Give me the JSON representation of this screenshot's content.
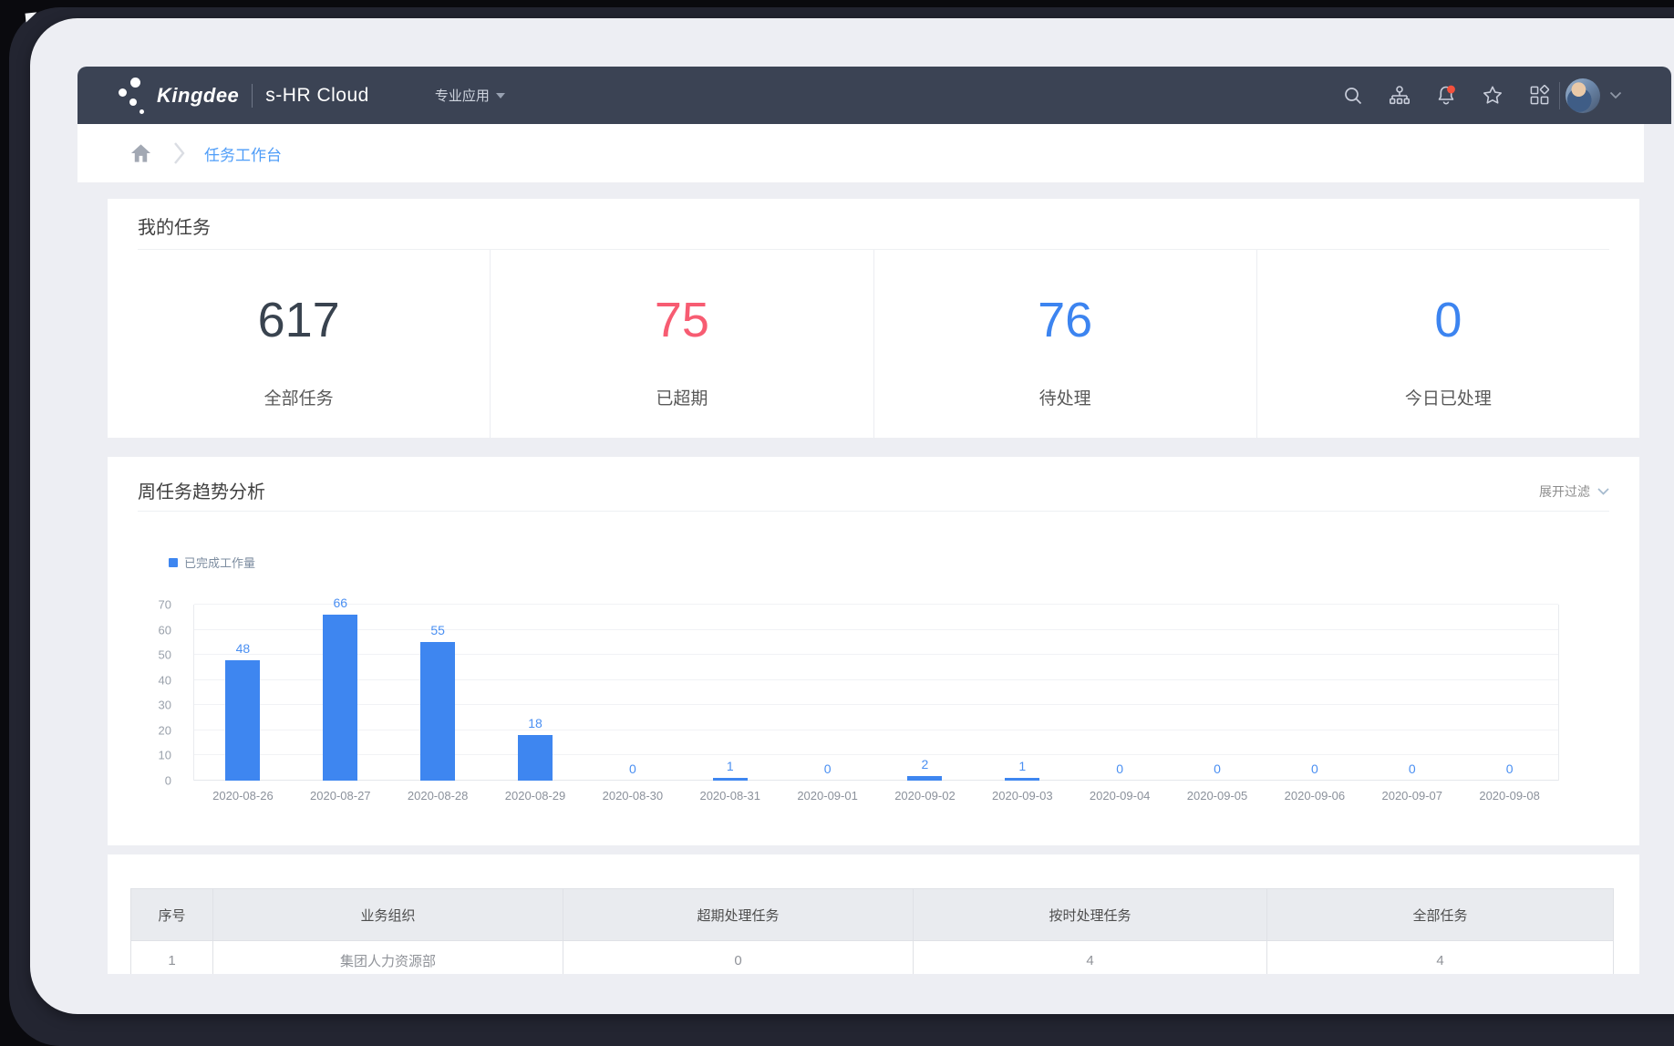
{
  "brand": {
    "logo_text": "Kingdee",
    "product": "s-HR Cloud",
    "menu_label": "专业应用"
  },
  "navbar": {
    "icons": [
      "search",
      "org-chart",
      "notifications",
      "favorites",
      "apps"
    ],
    "notification_dot_color": "#f4503c"
  },
  "breadcrumb": {
    "current": "任务工作台"
  },
  "my_tasks": {
    "title": "我的任务",
    "stats": [
      {
        "value": "617",
        "label": "全部任务",
        "color": "#39434f"
      },
      {
        "value": "75",
        "label": "已超期",
        "color": "#f75c72"
      },
      {
        "value": "76",
        "label": "待处理",
        "color": "#3c84f0"
      },
      {
        "value": "0",
        "label": "今日已处理",
        "color": "#3c84f0"
      }
    ]
  },
  "trend": {
    "title": "周任务趋势分析",
    "filter_label": "展开过滤"
  },
  "chart_data": {
    "type": "bar",
    "title": "周任务趋势分析",
    "legend": "已完成工作量",
    "legend_position": "top-left",
    "categories": [
      "2020-08-26",
      "2020-08-27",
      "2020-08-28",
      "2020-08-29",
      "2020-08-30",
      "2020-08-31",
      "2020-09-01",
      "2020-09-02",
      "2020-09-03",
      "2020-09-04",
      "2020-09-05",
      "2020-09-06",
      "2020-09-07",
      "2020-09-08"
    ],
    "values": [
      48,
      66,
      55,
      18,
      0,
      1,
      0,
      2,
      1,
      0,
      0,
      0,
      0,
      0
    ],
    "xlabel": "",
    "ylabel": "",
    "ylim": [
      0,
      70
    ],
    "yticks": [
      0,
      10,
      20,
      30,
      40,
      50,
      60,
      70
    ],
    "grid": true,
    "bar_color": "#3e86f0",
    "value_label_color": "#4a8ff2"
  },
  "table": {
    "headers": [
      "序号",
      "业务组织",
      "超期处理任务",
      "按时处理任务",
      "全部任务"
    ],
    "rows": [
      [
        "1",
        "集团人力资源部",
        "0",
        "4",
        "4"
      ]
    ]
  },
  "theme": {
    "navbar_bg": "#3b4354",
    "frame_bg": "#232531",
    "page_bg": "#edeef3",
    "accent_blue": "#3e86f0",
    "link_blue": "#4f9df8",
    "alert_red": "#f75c72"
  }
}
